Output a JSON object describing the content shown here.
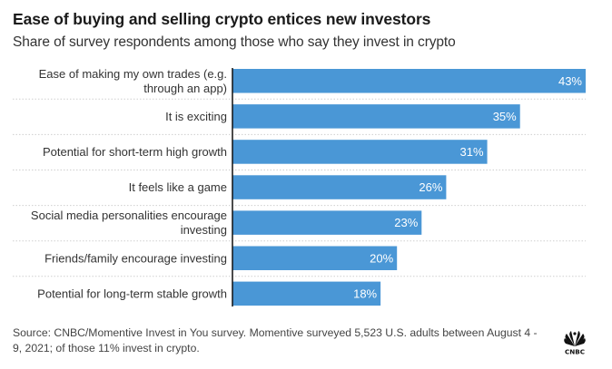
{
  "header": {
    "title": "Ease of buying and selling crypto entices new investors",
    "subtitle": "Share of survey respondents among those who say they invest in crypto"
  },
  "chart_data": {
    "type": "bar",
    "orientation": "horizontal",
    "title": "Ease of buying and selling crypto entices new investors",
    "subtitle": "Share of survey respondents among those who say they invest in crypto",
    "categories": [
      [
        "Ease of making my own trades (e.g.",
        "through an app)"
      ],
      [
        "It is exciting"
      ],
      [
        "Potential for short-term high growth"
      ],
      [
        "It feels like a game"
      ],
      [
        "Social media personalities encourage",
        "investing"
      ],
      [
        "Friends/family encourage investing"
      ],
      [
        "Potential for long-term stable growth"
      ]
    ],
    "values": [
      43,
      35,
      31,
      26,
      23,
      20,
      18
    ],
    "value_labels": [
      "43%",
      "35%",
      "31%",
      "26%",
      "23%",
      "20%",
      "18%"
    ],
    "unit": "%",
    "xlabel": "",
    "ylabel": "",
    "xlim": [
      0,
      43
    ],
    "grid": false,
    "legend": "none",
    "bar_color": "#4a97d6"
  },
  "footer": {
    "source": "Source: CNBC/Momentive Invest in You survey. Momentive surveyed 5,523 U.S. adults between August 4 - 9, 2021; of those 11% invest in crypto.",
    "logo_text": "CNBC",
    "logo_icon": "cnbc-peacock-icon"
  }
}
